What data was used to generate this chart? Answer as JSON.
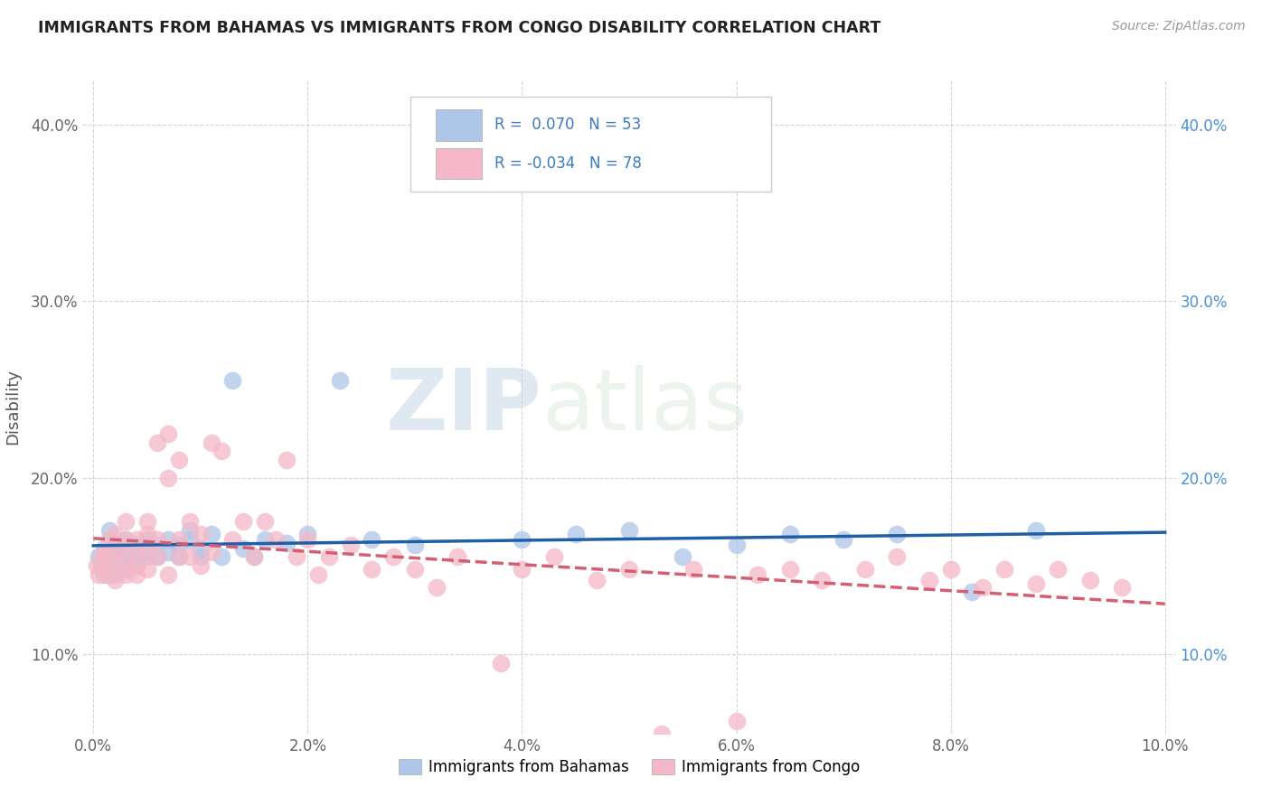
{
  "title": "IMMIGRANTS FROM BAHAMAS VS IMMIGRANTS FROM CONGO DISABILITY CORRELATION CHART",
  "source": "Source: ZipAtlas.com",
  "ylabel": "Disability",
  "xlim": [
    -0.001,
    0.101
  ],
  "ylim": [
    0.055,
    0.425
  ],
  "ytick_labels": [
    "10.0%",
    "20.0%",
    "30.0%",
    "40.0%"
  ],
  "ytick_values": [
    0.1,
    0.2,
    0.3,
    0.4
  ],
  "xtick_labels": [
    "0.0%",
    "2.0%",
    "4.0%",
    "6.0%",
    "8.0%",
    "10.0%"
  ],
  "xtick_values": [
    0.0,
    0.02,
    0.04,
    0.06,
    0.08,
    0.1
  ],
  "bahamas_scatter_color": "#aec6e8",
  "congo_scatter_color": "#f4b8c8",
  "bahamas_line_color": "#1f5fa6",
  "congo_line_color": "#d45f72",
  "R_bahamas": 0.07,
  "N_bahamas": 53,
  "R_congo": -0.034,
  "N_congo": 78,
  "legend_label_bahamas": "Immigrants from Bahamas",
  "legend_label_congo": "Immigrants from Congo",
  "bahamas_x": [
    0.0005,
    0.0008,
    0.001,
    0.001,
    0.0012,
    0.0015,
    0.0015,
    0.002,
    0.002,
    0.002,
    0.002,
    0.0025,
    0.003,
    0.003,
    0.003,
    0.003,
    0.004,
    0.004,
    0.004,
    0.005,
    0.005,
    0.005,
    0.006,
    0.006,
    0.007,
    0.007,
    0.008,
    0.008,
    0.009,
    0.009,
    0.01,
    0.01,
    0.011,
    0.012,
    0.013,
    0.014,
    0.015,
    0.016,
    0.018,
    0.02,
    0.023,
    0.026,
    0.03,
    0.04,
    0.045,
    0.05,
    0.055,
    0.06,
    0.065,
    0.07,
    0.075,
    0.082,
    0.088
  ],
  "bahamas_y": [
    0.155,
    0.15,
    0.145,
    0.16,
    0.155,
    0.17,
    0.148,
    0.155,
    0.162,
    0.145,
    0.158,
    0.152,
    0.148,
    0.155,
    0.165,
    0.158,
    0.155,
    0.162,
    0.15,
    0.155,
    0.165,
    0.158,
    0.155,
    0.162,
    0.165,
    0.158,
    0.155,
    0.162,
    0.165,
    0.17,
    0.155,
    0.16,
    0.168,
    0.155,
    0.255,
    0.16,
    0.155,
    0.165,
    0.163,
    0.168,
    0.255,
    0.165,
    0.162,
    0.165,
    0.168,
    0.17,
    0.155,
    0.162,
    0.168,
    0.165,
    0.168,
    0.135,
    0.17
  ],
  "congo_x": [
    0.0003,
    0.0005,
    0.0008,
    0.001,
    0.001,
    0.0012,
    0.0015,
    0.0015,
    0.002,
    0.002,
    0.002,
    0.002,
    0.003,
    0.003,
    0.003,
    0.003,
    0.003,
    0.004,
    0.004,
    0.004,
    0.004,
    0.005,
    0.005,
    0.005,
    0.005,
    0.006,
    0.006,
    0.006,
    0.007,
    0.007,
    0.007,
    0.008,
    0.008,
    0.008,
    0.009,
    0.009,
    0.01,
    0.01,
    0.011,
    0.011,
    0.012,
    0.013,
    0.014,
    0.015,
    0.016,
    0.017,
    0.018,
    0.019,
    0.02,
    0.021,
    0.022,
    0.024,
    0.026,
    0.028,
    0.03,
    0.032,
    0.034,
    0.038,
    0.04,
    0.043,
    0.047,
    0.05,
    0.053,
    0.056,
    0.06,
    0.062,
    0.065,
    0.068,
    0.072,
    0.075,
    0.078,
    0.08,
    0.083,
    0.085,
    0.088,
    0.09,
    0.093,
    0.096
  ],
  "congo_y": [
    0.15,
    0.145,
    0.155,
    0.148,
    0.158,
    0.155,
    0.145,
    0.165,
    0.152,
    0.142,
    0.158,
    0.168,
    0.148,
    0.155,
    0.165,
    0.145,
    0.175,
    0.15,
    0.158,
    0.145,
    0.165,
    0.148,
    0.158,
    0.168,
    0.175,
    0.155,
    0.22,
    0.165,
    0.145,
    0.2,
    0.225,
    0.155,
    0.165,
    0.21,
    0.155,
    0.175,
    0.15,
    0.168,
    0.22,
    0.158,
    0.215,
    0.165,
    0.175,
    0.155,
    0.175,
    0.165,
    0.21,
    0.155,
    0.165,
    0.145,
    0.155,
    0.162,
    0.148,
    0.155,
    0.148,
    0.138,
    0.155,
    0.095,
    0.148,
    0.155,
    0.142,
    0.148,
    0.055,
    0.148,
    0.062,
    0.145,
    0.148,
    0.142,
    0.148,
    0.155,
    0.142,
    0.148,
    0.138,
    0.148,
    0.14,
    0.148,
    0.142,
    0.138
  ],
  "watermark_zip": "ZIP",
  "watermark_atlas": "atlas",
  "background_color": "#ffffff",
  "grid_color": "#d0d0d0"
}
